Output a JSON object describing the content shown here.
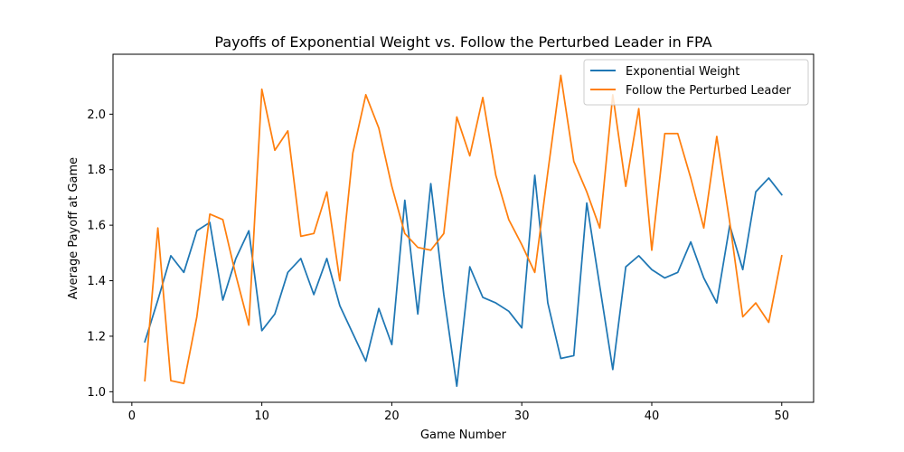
{
  "chart_data": {
    "type": "line",
    "title": "Payoffs of Exponential Weight vs. Follow the Perturbed Leader in FPA",
    "xlabel": "Game Number",
    "ylabel": "Average Payoff at Game",
    "xlim": [
      -1.45,
      52.45
    ],
    "ylim": [
      0.962,
      2.216
    ],
    "xticks": [
      0,
      10,
      20,
      30,
      40,
      50
    ],
    "xtick_labels": [
      "0",
      "10",
      "20",
      "30",
      "40",
      "50"
    ],
    "yticks": [
      1.0,
      1.2,
      1.4,
      1.6,
      1.8,
      2.0
    ],
    "ytick_labels": [
      "1.0",
      "1.2",
      "1.4",
      "1.6",
      "1.8",
      "2.0"
    ],
    "grid": false,
    "legend_position": "upper right",
    "x": [
      1,
      2,
      3,
      4,
      5,
      6,
      7,
      8,
      9,
      10,
      11,
      12,
      13,
      14,
      15,
      16,
      17,
      18,
      19,
      20,
      21,
      22,
      23,
      24,
      25,
      26,
      27,
      28,
      29,
      30,
      31,
      32,
      33,
      34,
      35,
      36,
      37,
      38,
      39,
      40,
      41,
      42,
      43,
      44,
      45,
      46,
      47,
      48,
      49,
      50
    ],
    "series": [
      {
        "name": "Exponential Weight",
        "color": "#1f77b4",
        "values": [
          1.18,
          1.33,
          1.49,
          1.43,
          1.58,
          1.61,
          1.33,
          1.48,
          1.58,
          1.22,
          1.28,
          1.43,
          1.48,
          1.35,
          1.48,
          1.31,
          1.21,
          1.11,
          1.3,
          1.17,
          1.69,
          1.28,
          1.75,
          1.35,
          1.02,
          1.45,
          1.34,
          1.32,
          1.29,
          1.23,
          1.78,
          1.32,
          1.12,
          1.13,
          1.68,
          1.38,
          1.08,
          1.45,
          1.49,
          1.44,
          1.41,
          1.43,
          1.54,
          1.41,
          1.32,
          1.6,
          1.44,
          1.72,
          1.77,
          1.71
        ]
      },
      {
        "name": "Follow the Perturbed Leader",
        "color": "#ff7f0e",
        "values": [
          1.04,
          1.59,
          1.04,
          1.03,
          1.27,
          1.64,
          1.62,
          1.42,
          1.24,
          2.09,
          1.87,
          1.94,
          1.56,
          1.57,
          1.72,
          1.4,
          1.86,
          2.07,
          1.95,
          1.74,
          1.57,
          1.52,
          1.51,
          1.57,
          1.99,
          1.85,
          2.06,
          1.78,
          1.62,
          1.53,
          1.43,
          1.79,
          2.14,
          1.83,
          1.72,
          1.59,
          2.07,
          1.74,
          2.02,
          1.51,
          1.93,
          1.93,
          1.77,
          1.59,
          1.92,
          1.61,
          1.27,
          1.32,
          1.25,
          1.49
        ]
      }
    ]
  }
}
